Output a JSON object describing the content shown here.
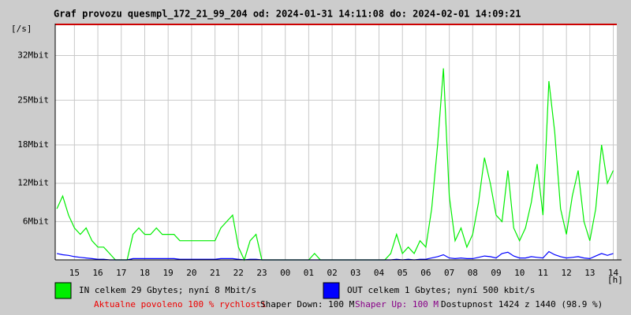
{
  "chart_data": {
    "type": "line",
    "title": "Graf provozu quesmpl_172_21_99_204 od: 2024-01-31 14:11:08 do: 2024-02-01 14:09:21",
    "y_unit": "[/s]",
    "x_unit": "[h]",
    "x": [
      14.25,
      14.5,
      14.75,
      15,
      15.25,
      15.5,
      15.75,
      16,
      16.25,
      16.5,
      16.75,
      17,
      17.25,
      17.5,
      17.75,
      18,
      18.25,
      18.5,
      18.75,
      19,
      19.25,
      19.5,
      19.75,
      20,
      20.25,
      20.5,
      20.75,
      21,
      21.25,
      21.5,
      21.75,
      22,
      22.25,
      22.5,
      22.75,
      23,
      23.25,
      23.5,
      23.75,
      24,
      24.25,
      24.5,
      24.75,
      25,
      25.25,
      25.5,
      25.75,
      26,
      26.25,
      26.5,
      26.75,
      27,
      27.25,
      27.5,
      27.75,
      28,
      28.25,
      28.5,
      28.75,
      29,
      29.25,
      29.5,
      29.75,
      30,
      30.25,
      30.5,
      30.75,
      31,
      31.25,
      31.5,
      31.75,
      32,
      32.25,
      32.5,
      32.75,
      33,
      33.25,
      33.5,
      33.75,
      34,
      34.25,
      34.5,
      34.75,
      35,
      35.25,
      35.5,
      35.75,
      36,
      36.25,
      36.5,
      36.75,
      37,
      37.25,
      37.5,
      37.75,
      38
    ],
    "series": [
      {
        "name": "IN celkem 29 Gbytes; nyní 8 Mbit/s",
        "color": "#00ee00",
        "values": [
          8,
          10,
          7,
          5,
          4,
          5,
          3,
          2,
          2,
          1,
          0,
          0,
          0,
          4,
          5,
          4,
          4,
          5,
          4,
          4,
          4,
          3,
          3,
          3,
          3,
          3,
          3,
          3,
          5,
          6,
          7,
          2,
          0,
          3,
          4,
          0,
          0,
          0,
          0,
          0,
          0,
          0,
          0,
          0,
          1,
          0,
          0,
          0,
          0,
          0,
          0,
          0,
          0,
          0,
          0,
          0,
          0,
          1,
          4,
          1,
          2,
          1,
          3,
          2,
          8,
          18,
          30,
          10,
          3,
          5,
          2,
          4,
          9,
          16,
          12,
          7,
          6,
          14,
          5,
          3,
          5,
          9,
          15,
          7,
          28,
          20,
          8,
          4,
          10,
          14,
          6,
          3,
          8,
          18,
          12,
          14
        ]
      },
      {
        "name": "OUT celkem 1 Gbytes; nyní 500 kbit/s",
        "color": "#0000ff",
        "values": [
          1,
          0.8,
          0.7,
          0.5,
          0.4,
          0.3,
          0.2,
          0.1,
          0.1,
          0,
          0,
          0,
          0,
          0.2,
          0.2,
          0.2,
          0.2,
          0.2,
          0.2,
          0.2,
          0.2,
          0.1,
          0.1,
          0.1,
          0.1,
          0.1,
          0.1,
          0.1,
          0.2,
          0.2,
          0.2,
          0.1,
          0,
          0.1,
          0.1,
          0,
          0,
          0,
          0,
          0,
          0,
          0,
          0,
          0,
          0,
          0,
          0,
          0,
          0,
          0,
          0,
          0,
          0,
          0,
          0,
          0,
          0,
          0,
          0.1,
          0,
          0.1,
          0,
          0.1,
          0.1,
          0.3,
          0.5,
          0.8,
          0.3,
          0.2,
          0.3,
          0.2,
          0.2,
          0.4,
          0.6,
          0.5,
          0.3,
          1,
          1.2,
          0.6,
          0.3,
          0.3,
          0.5,
          0.4,
          0.3,
          1.3,
          0.8,
          0.5,
          0.3,
          0.4,
          0.5,
          0.3,
          0.2,
          0.6,
          1,
          0.7,
          1
        ]
      }
    ],
    "xlim": [
      14.18,
      38.15
    ],
    "xticks": [
      {
        "value": 15,
        "label": "15"
      },
      {
        "value": 16,
        "label": "16"
      },
      {
        "value": 17,
        "label": "17"
      },
      {
        "value": 18,
        "label": "18"
      },
      {
        "value": 19,
        "label": "19"
      },
      {
        "value": 20,
        "label": "20"
      },
      {
        "value": 21,
        "label": "21"
      },
      {
        "value": 22,
        "label": "22"
      },
      {
        "value": 23,
        "label": "23"
      },
      {
        "value": 24,
        "label": "00"
      },
      {
        "value": 25,
        "label": "01"
      },
      {
        "value": 26,
        "label": "02"
      },
      {
        "value": 27,
        "label": "03"
      },
      {
        "value": 28,
        "label": "04"
      },
      {
        "value": 29,
        "label": "05"
      },
      {
        "value": 30,
        "label": "06"
      },
      {
        "value": 31,
        "label": "07"
      },
      {
        "value": 32,
        "label": "08"
      },
      {
        "value": 33,
        "label": "09"
      },
      {
        "value": 34,
        "label": "10"
      },
      {
        "value": 35,
        "label": "11"
      },
      {
        "value": 36,
        "label": "12"
      },
      {
        "value": 37,
        "label": "13"
      },
      {
        "value": 38,
        "label": "14"
      }
    ],
    "ylim": [
      0,
      37
    ],
    "yticks": [
      {
        "value": 6,
        "label": "6Mbit"
      },
      {
        "value": 12,
        "label": "12Mbit"
      },
      {
        "value": 18,
        "label": "18Mbit"
      },
      {
        "value": 25,
        "label": "25Mbit"
      },
      {
        "value": 32,
        "label": "32Mbit"
      }
    ],
    "grid": true,
    "footer": [
      "Aktualne povoleno 100 % rychlosti",
      "Shaper Down: 100 M",
      "Shaper Up: 100 M",
      "Dostupnost 1424 z 1440 (98.9 %)"
    ]
  }
}
